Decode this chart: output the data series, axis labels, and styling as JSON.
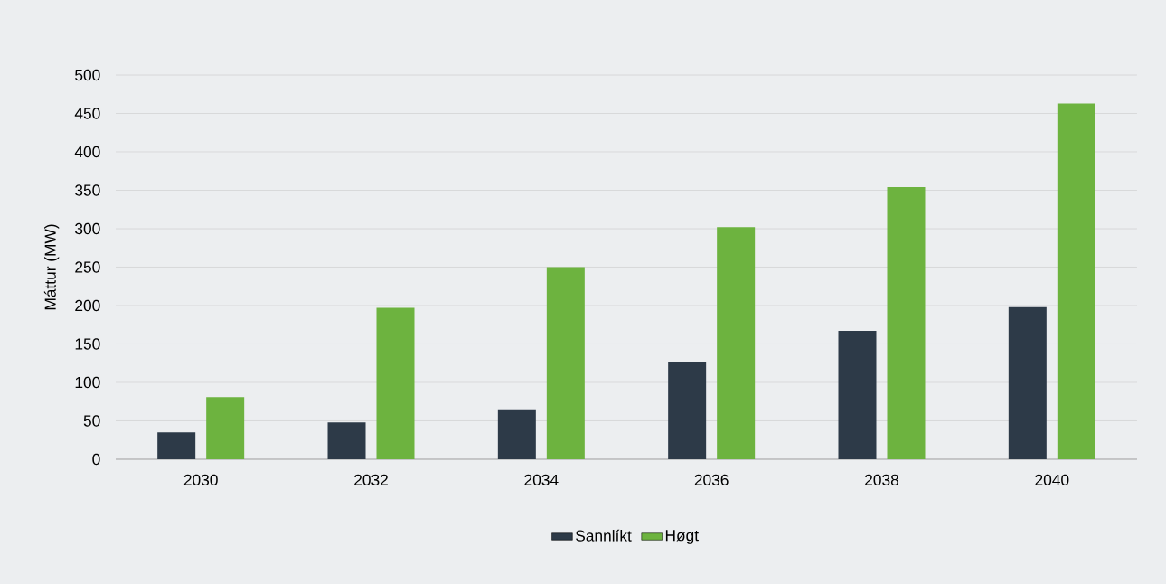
{
  "chart_data": {
    "type": "bar",
    "ylabel": "Máttur (MW)",
    "categories": [
      "2030",
      "2032",
      "2034",
      "2036",
      "2038",
      "2040"
    ],
    "series": [
      {
        "name": "Sannlíkt",
        "color": "#2d3a48",
        "values": [
          35,
          48,
          65,
          127,
          167,
          198
        ]
      },
      {
        "name": "Høgt",
        "color": "#6db33f",
        "values": [
          81,
          197,
          250,
          302,
          354,
          463
        ]
      }
    ],
    "ylim": [
      0,
      500
    ],
    "yticks": [
      0,
      50,
      100,
      150,
      200,
      250,
      300,
      350,
      400,
      450,
      500
    ],
    "grid": "y",
    "legend": "bottom"
  }
}
